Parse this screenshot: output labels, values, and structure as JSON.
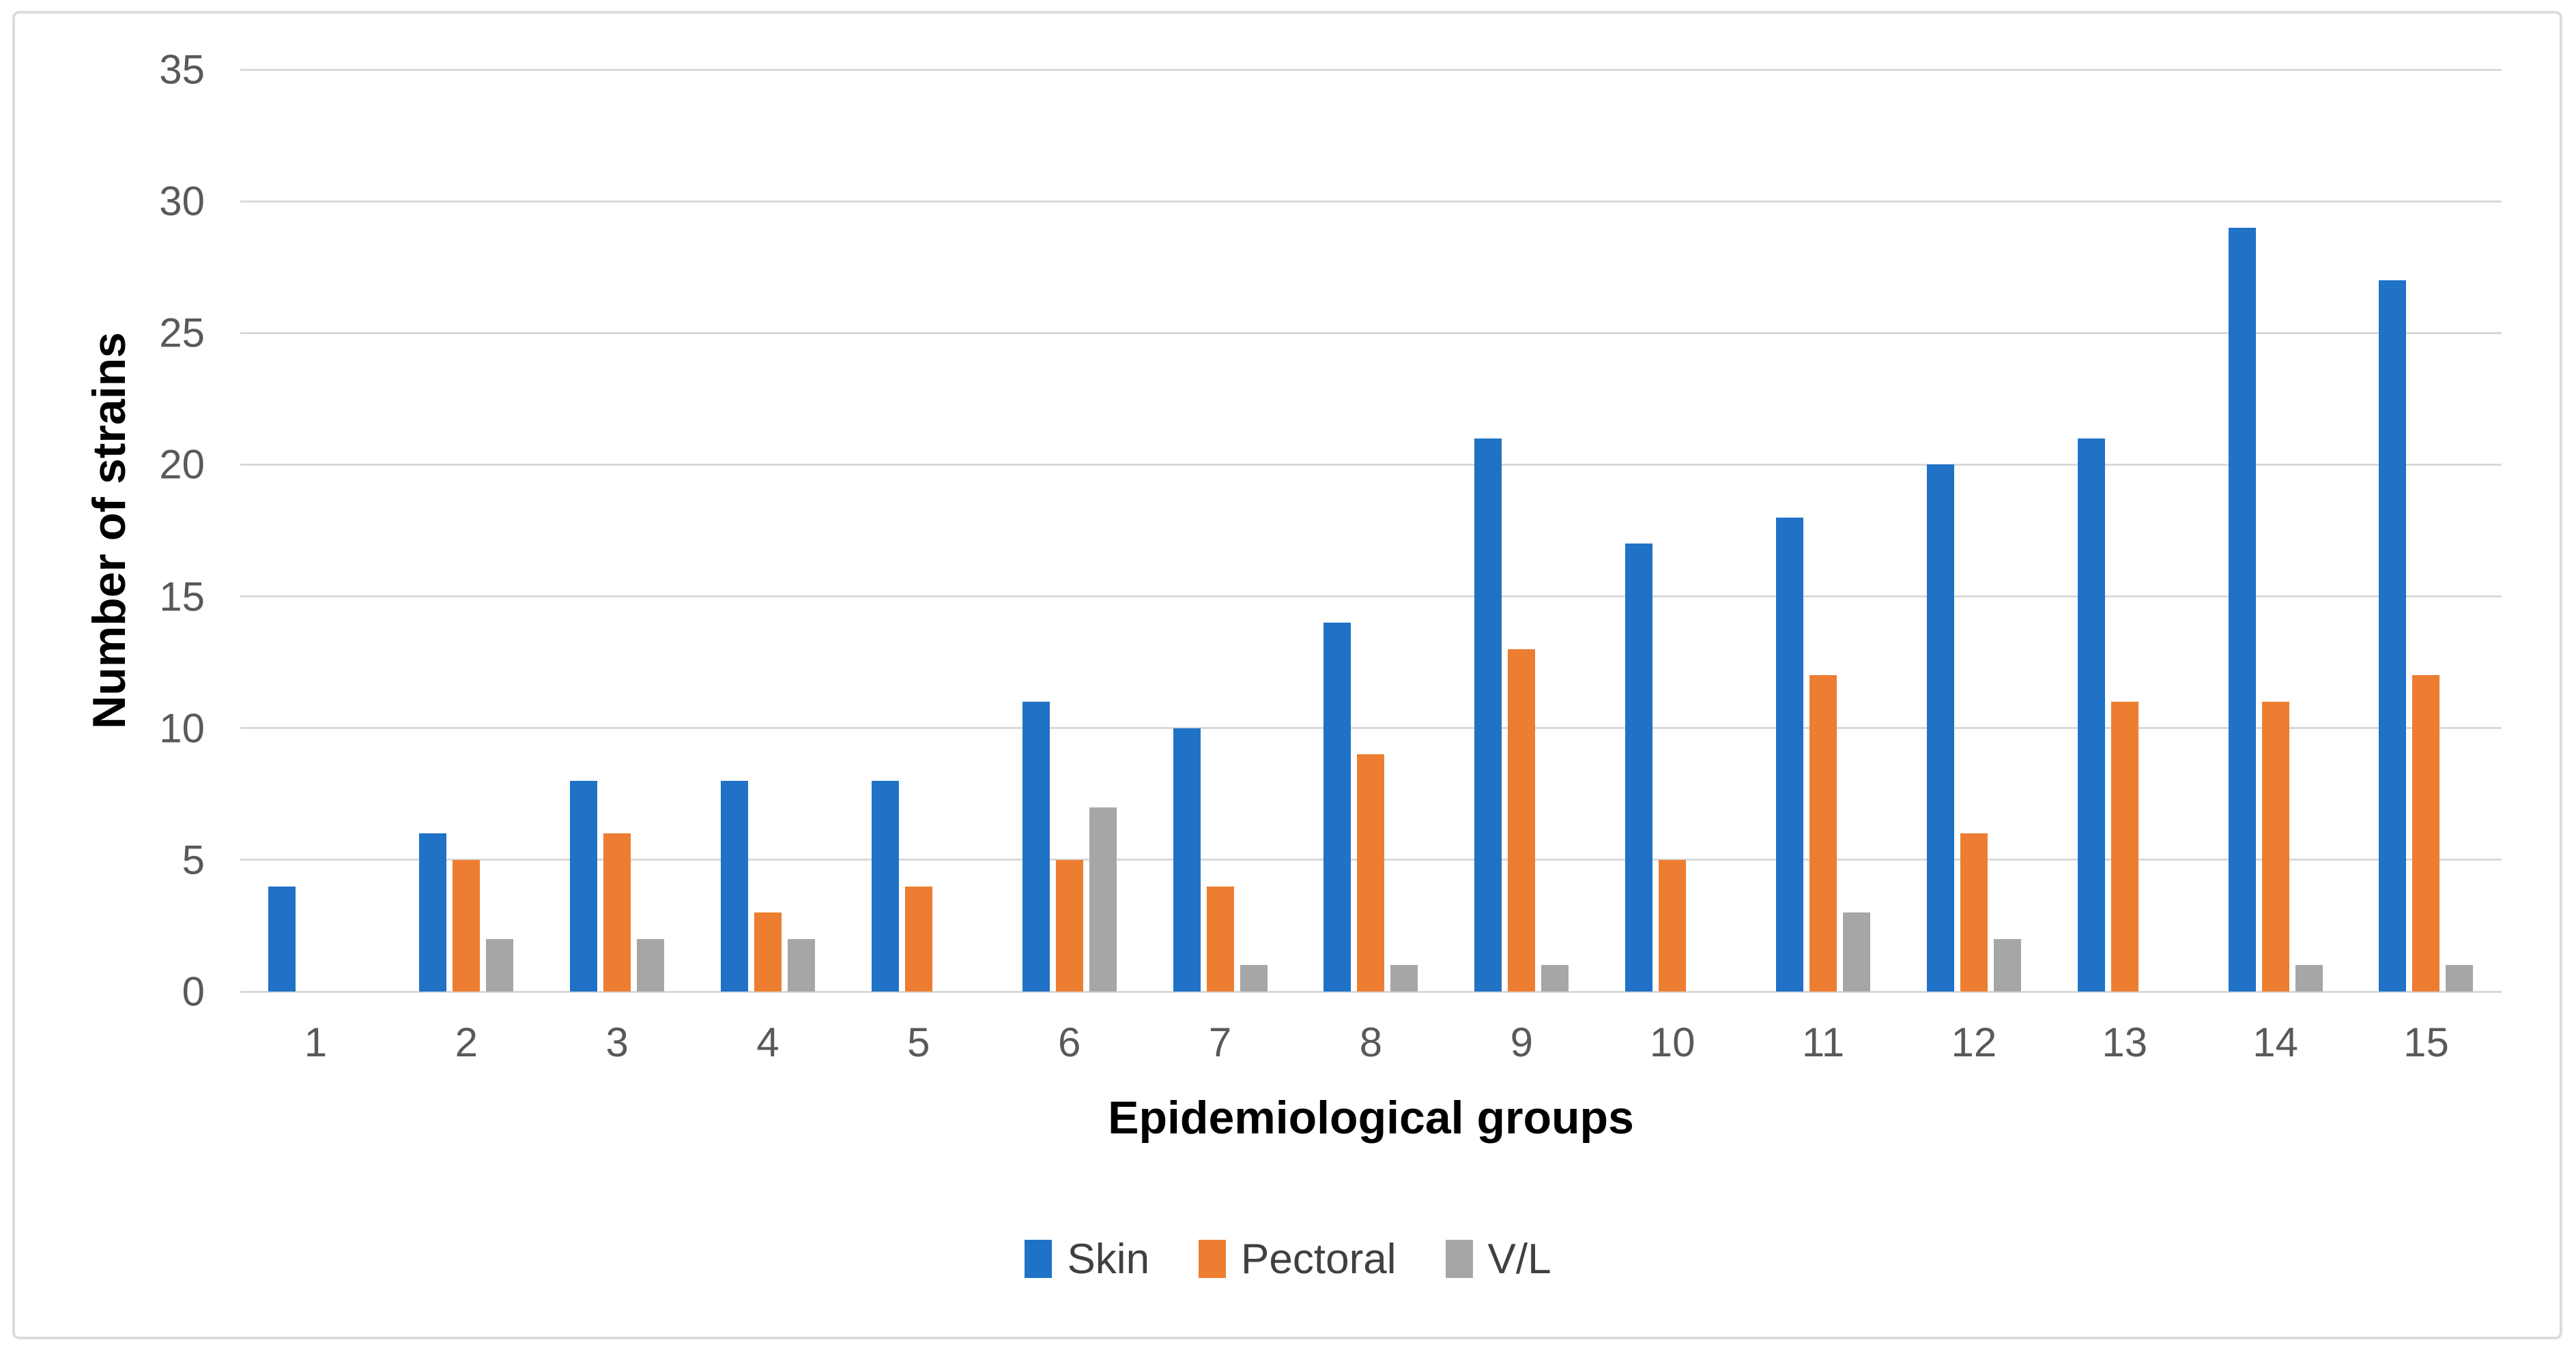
{
  "chart_data": {
    "type": "bar",
    "title": "",
    "categories": [
      "1",
      "2",
      "3",
      "4",
      "5",
      "6",
      "7",
      "8",
      "9",
      "10",
      "11",
      "12",
      "13",
      "14",
      "15"
    ],
    "series": [
      {
        "name": "Skin",
        "color": "#1f72c6",
        "values": [
          4,
          6,
          8,
          8,
          8,
          11,
          10,
          14,
          21,
          17,
          18,
          20,
          21,
          29,
          27
        ]
      },
      {
        "name": "Pectoral",
        "color": "#ed7d31",
        "values": [
          0,
          5,
          6,
          3,
          4,
          5,
          4,
          9,
          13,
          5,
          12,
          6,
          11,
          11,
          12
        ]
      },
      {
        "name": "V/L",
        "color": "#a6a6a6",
        "values": [
          0,
          2,
          2,
          2,
          0,
          7,
          1,
          1,
          1,
          0,
          3,
          2,
          0,
          1,
          1
        ]
      }
    ],
    "xlabel": "Epidemiological groups",
    "ylabel": "Number of strains",
    "ylim": [
      0,
      35
    ],
    "yticks": [
      0,
      5,
      10,
      15,
      20,
      25,
      30,
      35
    ],
    "grid": true,
    "legend_position": "bottom",
    "legend_entries": [
      "Skin",
      "Pectoral",
      "V/L"
    ]
  },
  "colors": {
    "skin": "#1f72c6",
    "pectoral": "#ed7d31",
    "vl": "#a6a6a6",
    "gridline": "#d9d9d9",
    "tick_text": "#595959",
    "axis_title_text": "#000000",
    "legend_text": "#404040",
    "figure_border": "#dcdcdc"
  }
}
